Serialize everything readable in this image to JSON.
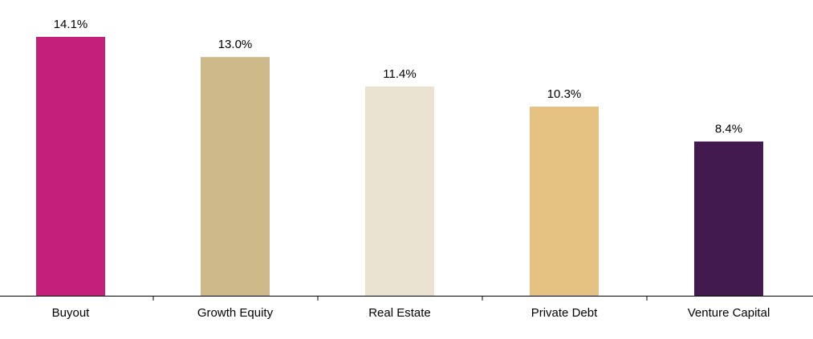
{
  "chart_data": {
    "type": "bar",
    "title": "",
    "xlabel": "",
    "ylabel": "",
    "ylim": [
      0,
      14.1
    ],
    "grid": false,
    "categories": [
      "Buyout",
      "Growth Equity",
      "Real Estate",
      "Private Debt",
      "Venture Capital"
    ],
    "values": [
      14.1,
      13.0,
      11.4,
      10.3,
      8.4
    ],
    "value_labels": [
      "14.1%",
      "13.0%",
      "11.4%",
      "10.3%",
      "8.4%"
    ],
    "colors": [
      "#c51f7c",
      "#cdb98a",
      "#ebe3d2",
      "#e5c281",
      "#421a4f"
    ]
  }
}
